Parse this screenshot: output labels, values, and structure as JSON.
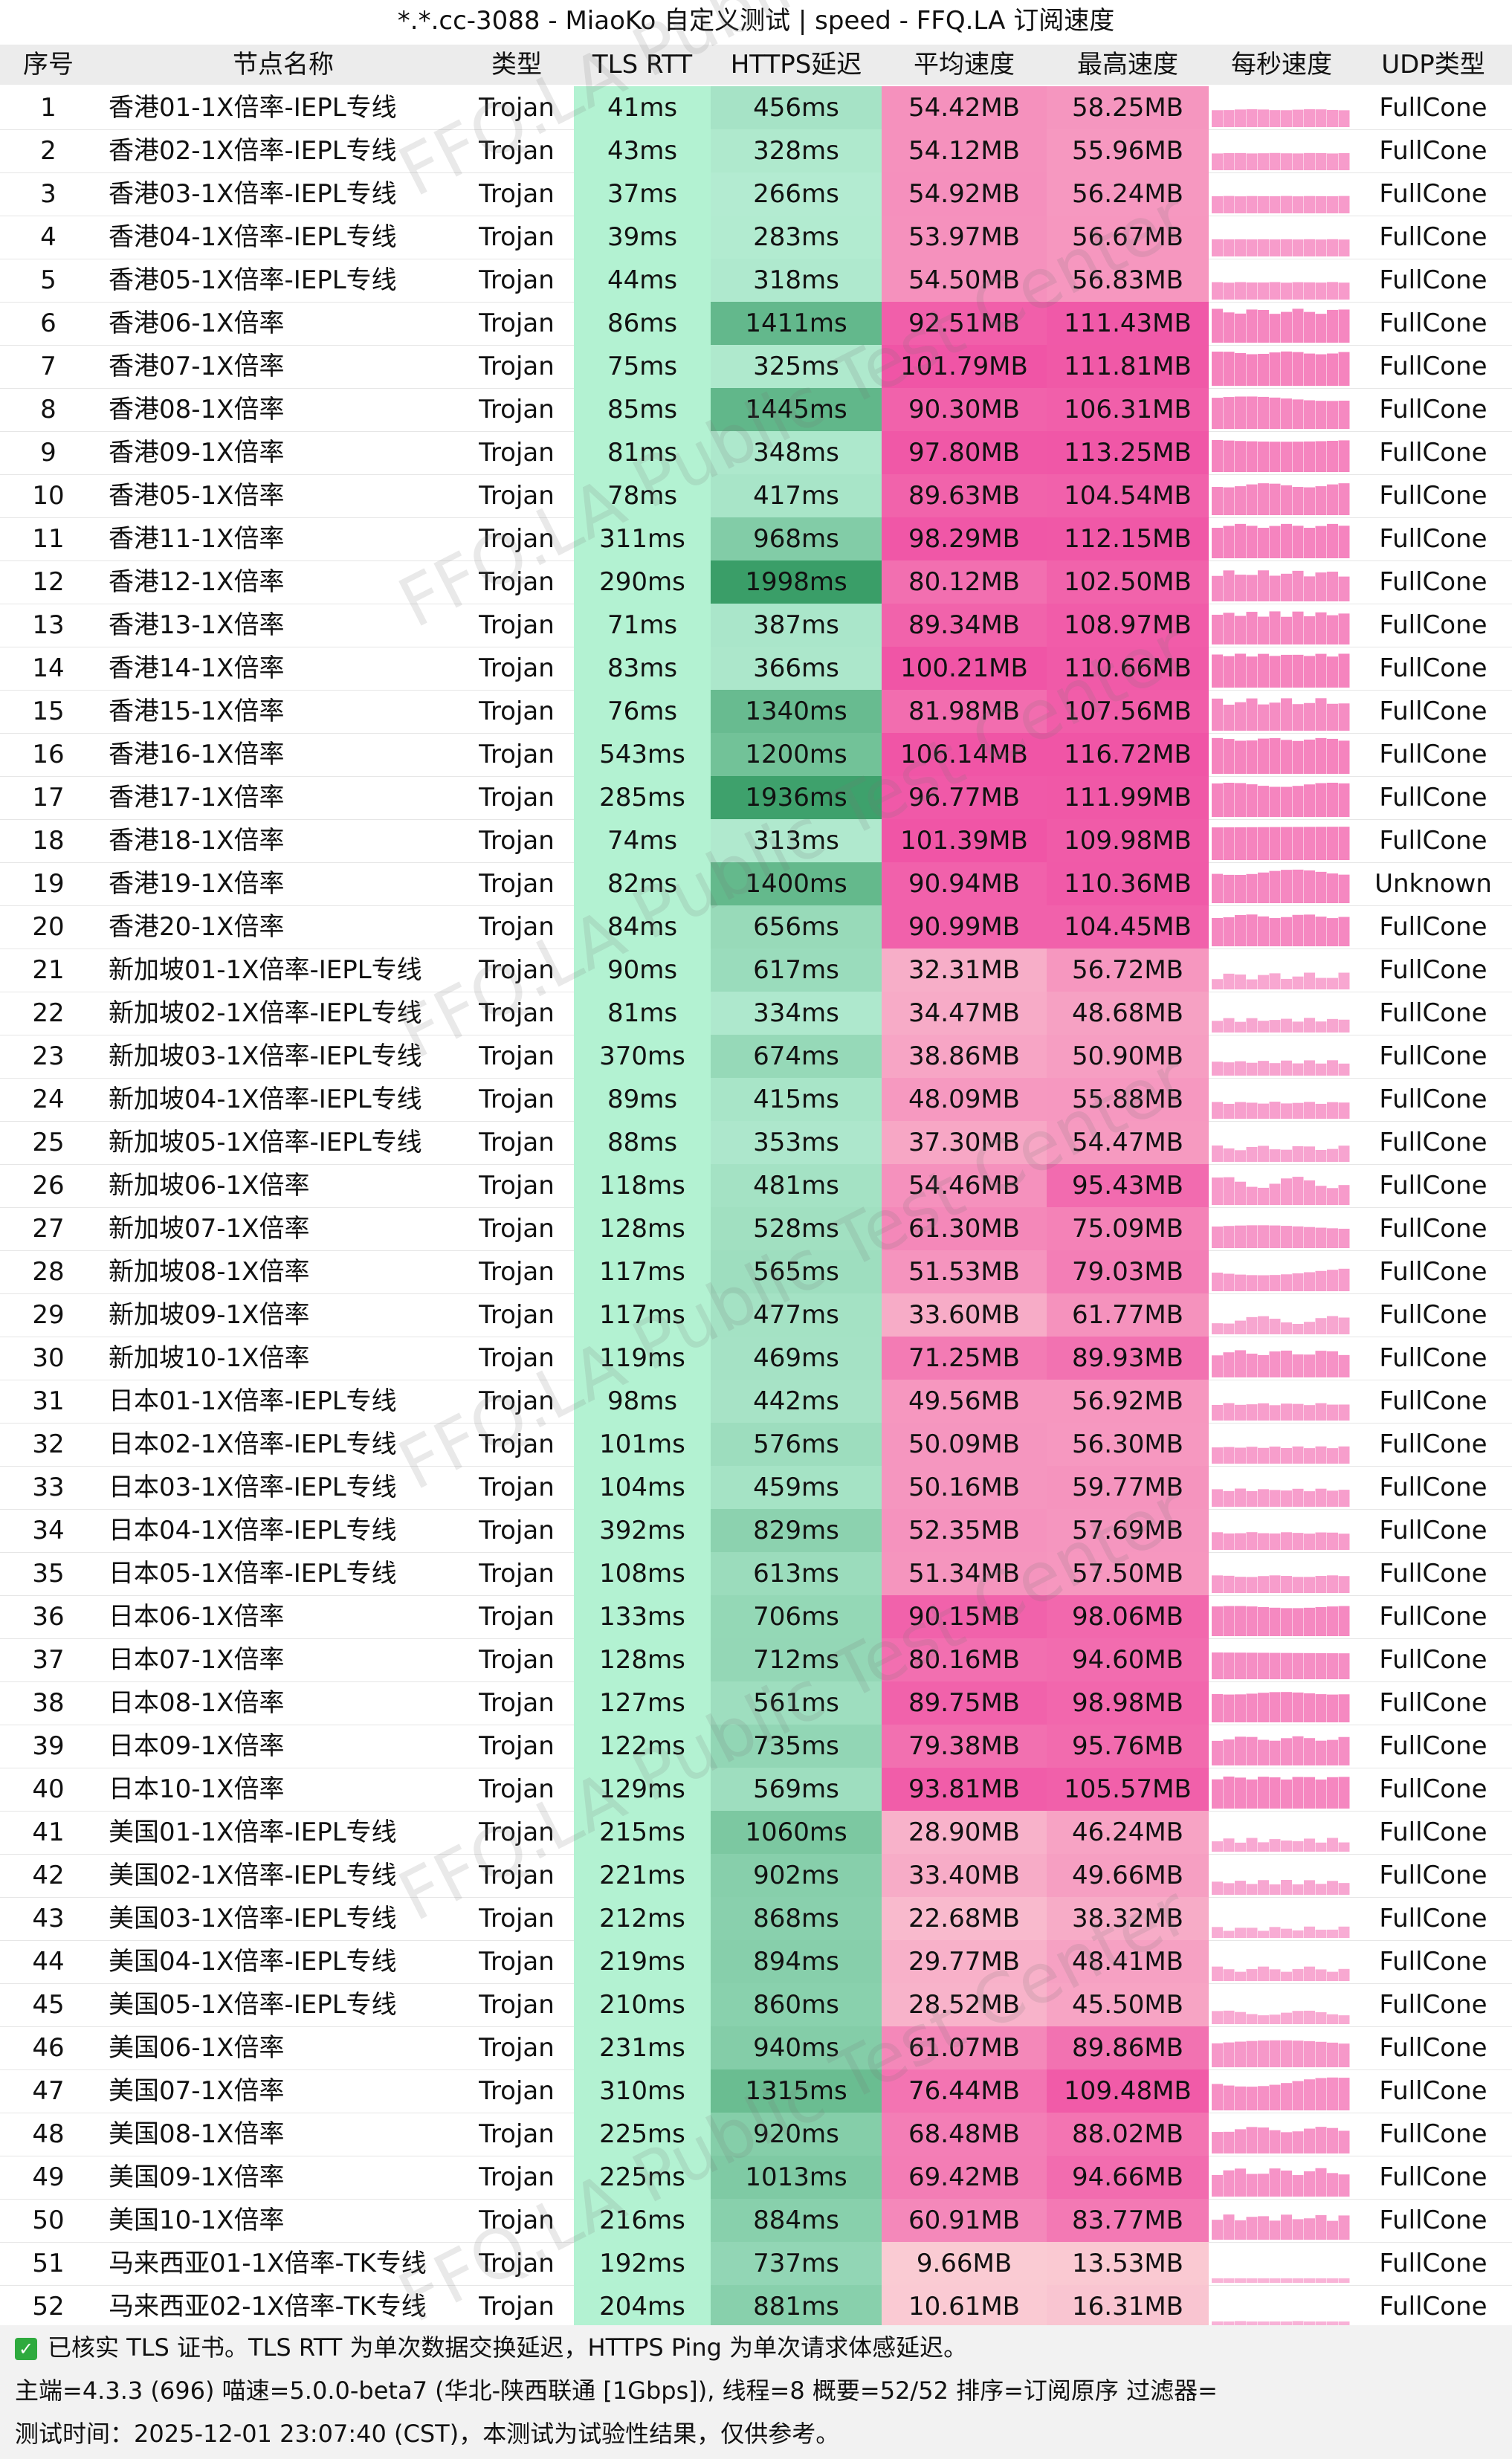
{
  "window": {
    "title": "*.*.cc-3088 - MiaoKo 自定义测试 | speed - FFQ.LA 订阅速度"
  },
  "columns": [
    "序号",
    "节点名称",
    "类型",
    "TLS RTT",
    "HTTPS延迟",
    "平均速度",
    "最高速度",
    "每秒速度",
    "UDP类型"
  ],
  "watermark": "FFQ.LA Public Test Center",
  "colors": {
    "tls_bg": "#b3f2d2",
    "https_light": "#b4ecd2",
    "https_dark": "#3a9e68",
    "speed_light": "#fbd8d8",
    "speed_dark": "#f055a6",
    "spark": "#f47dbb"
  },
  "rows": [
    {
      "idx": "1",
      "name": "香港01-1X倍率-IEPL专线",
      "type": "Trojan",
      "tls": "41ms",
      "https": "456ms",
      "avg": "54.42MB",
      "max": "58.25MB",
      "udp": "FullCone"
    },
    {
      "idx": "2",
      "name": "香港02-1X倍率-IEPL专线",
      "type": "Trojan",
      "tls": "43ms",
      "https": "328ms",
      "avg": "54.12MB",
      "max": "55.96MB",
      "udp": "FullCone"
    },
    {
      "idx": "3",
      "name": "香港03-1X倍率-IEPL专线",
      "type": "Trojan",
      "tls": "37ms",
      "https": "266ms",
      "avg": "54.92MB",
      "max": "56.24MB",
      "udp": "FullCone"
    },
    {
      "idx": "4",
      "name": "香港04-1X倍率-IEPL专线",
      "type": "Trojan",
      "tls": "39ms",
      "https": "283ms",
      "avg": "53.97MB",
      "max": "56.67MB",
      "udp": "FullCone"
    },
    {
      "idx": "5",
      "name": "香港05-1X倍率-IEPL专线",
      "type": "Trojan",
      "tls": "44ms",
      "https": "318ms",
      "avg": "54.50MB",
      "max": "56.83MB",
      "udp": "FullCone"
    },
    {
      "idx": "6",
      "name": "香港06-1X倍率",
      "type": "Trojan",
      "tls": "86ms",
      "https": "1411ms",
      "avg": "92.51MB",
      "max": "111.43MB",
      "udp": "FullCone"
    },
    {
      "idx": "7",
      "name": "香港07-1X倍率",
      "type": "Trojan",
      "tls": "75ms",
      "https": "325ms",
      "avg": "101.79MB",
      "max": "111.81MB",
      "udp": "FullCone"
    },
    {
      "idx": "8",
      "name": "香港08-1X倍率",
      "type": "Trojan",
      "tls": "85ms",
      "https": "1445ms",
      "avg": "90.30MB",
      "max": "106.31MB",
      "udp": "FullCone"
    },
    {
      "idx": "9",
      "name": "香港09-1X倍率",
      "type": "Trojan",
      "tls": "81ms",
      "https": "348ms",
      "avg": "97.80MB",
      "max": "113.25MB",
      "udp": "FullCone"
    },
    {
      "idx": "10",
      "name": "香港05-1X倍率",
      "type": "Trojan",
      "tls": "78ms",
      "https": "417ms",
      "avg": "89.63MB",
      "max": "104.54MB",
      "udp": "FullCone"
    },
    {
      "idx": "11",
      "name": "香港11-1X倍率",
      "type": "Trojan",
      "tls": "311ms",
      "https": "968ms",
      "avg": "98.29MB",
      "max": "112.15MB",
      "udp": "FullCone"
    },
    {
      "idx": "12",
      "name": "香港12-1X倍率",
      "type": "Trojan",
      "tls": "290ms",
      "https": "1998ms",
      "avg": "80.12MB",
      "max": "102.50MB",
      "udp": "FullCone"
    },
    {
      "idx": "13",
      "name": "香港13-1X倍率",
      "type": "Trojan",
      "tls": "71ms",
      "https": "387ms",
      "avg": "89.34MB",
      "max": "108.97MB",
      "udp": "FullCone"
    },
    {
      "idx": "14",
      "name": "香港14-1X倍率",
      "type": "Trojan",
      "tls": "83ms",
      "https": "366ms",
      "avg": "100.21MB",
      "max": "110.66MB",
      "udp": "FullCone"
    },
    {
      "idx": "15",
      "name": "香港15-1X倍率",
      "type": "Trojan",
      "tls": "76ms",
      "https": "1340ms",
      "avg": "81.98MB",
      "max": "107.56MB",
      "udp": "FullCone"
    },
    {
      "idx": "16",
      "name": "香港16-1X倍率",
      "type": "Trojan",
      "tls": "543ms",
      "https": "1200ms",
      "avg": "106.14MB",
      "max": "116.72MB",
      "udp": "FullCone"
    },
    {
      "idx": "17",
      "name": "香港17-1X倍率",
      "type": "Trojan",
      "tls": "285ms",
      "https": "1936ms",
      "avg": "96.77MB",
      "max": "111.99MB",
      "udp": "FullCone"
    },
    {
      "idx": "18",
      "name": "香港18-1X倍率",
      "type": "Trojan",
      "tls": "74ms",
      "https": "313ms",
      "avg": "101.39MB",
      "max": "109.98MB",
      "udp": "FullCone"
    },
    {
      "idx": "19",
      "name": "香港19-1X倍率",
      "type": "Trojan",
      "tls": "82ms",
      "https": "1400ms",
      "avg": "90.94MB",
      "max": "110.36MB",
      "udp": "Unknown"
    },
    {
      "idx": "20",
      "name": "香港20-1X倍率",
      "type": "Trojan",
      "tls": "84ms",
      "https": "656ms",
      "avg": "90.99MB",
      "max": "104.45MB",
      "udp": "FullCone"
    },
    {
      "idx": "21",
      "name": "新加坡01-1X倍率-IEPL专线",
      "type": "Trojan",
      "tls": "90ms",
      "https": "617ms",
      "avg": "32.31MB",
      "max": "56.72MB",
      "udp": "FullCone"
    },
    {
      "idx": "22",
      "name": "新加坡02-1X倍率-IEPL专线",
      "type": "Trojan",
      "tls": "81ms",
      "https": "334ms",
      "avg": "34.47MB",
      "max": "48.68MB",
      "udp": "FullCone"
    },
    {
      "idx": "23",
      "name": "新加坡03-1X倍率-IEPL专线",
      "type": "Trojan",
      "tls": "370ms",
      "https": "674ms",
      "avg": "38.86MB",
      "max": "50.90MB",
      "udp": "FullCone"
    },
    {
      "idx": "24",
      "name": "新加坡04-1X倍率-IEPL专线",
      "type": "Trojan",
      "tls": "89ms",
      "https": "415ms",
      "avg": "48.09MB",
      "max": "55.88MB",
      "udp": "FullCone"
    },
    {
      "idx": "25",
      "name": "新加坡05-1X倍率-IEPL专线",
      "type": "Trojan",
      "tls": "88ms",
      "https": "353ms",
      "avg": "37.30MB",
      "max": "54.47MB",
      "udp": "FullCone"
    },
    {
      "idx": "26",
      "name": "新加坡06-1X倍率",
      "type": "Trojan",
      "tls": "118ms",
      "https": "481ms",
      "avg": "54.46MB",
      "max": "95.43MB",
      "udp": "FullCone"
    },
    {
      "idx": "27",
      "name": "新加坡07-1X倍率",
      "type": "Trojan",
      "tls": "128ms",
      "https": "528ms",
      "avg": "61.30MB",
      "max": "75.09MB",
      "udp": "FullCone"
    },
    {
      "idx": "28",
      "name": "新加坡08-1X倍率",
      "type": "Trojan",
      "tls": "117ms",
      "https": "565ms",
      "avg": "51.53MB",
      "max": "79.03MB",
      "udp": "FullCone"
    },
    {
      "idx": "29",
      "name": "新加坡09-1X倍率",
      "type": "Trojan",
      "tls": "117ms",
      "https": "477ms",
      "avg": "33.60MB",
      "max": "61.77MB",
      "udp": "FullCone"
    },
    {
      "idx": "30",
      "name": "新加坡10-1X倍率",
      "type": "Trojan",
      "tls": "119ms",
      "https": "469ms",
      "avg": "71.25MB",
      "max": "89.93MB",
      "udp": "FullCone"
    },
    {
      "idx": "31",
      "name": "日本01-1X倍率-IEPL专线",
      "type": "Trojan",
      "tls": "98ms",
      "https": "442ms",
      "avg": "49.56MB",
      "max": "56.92MB",
      "udp": "FullCone"
    },
    {
      "idx": "32",
      "name": "日本02-1X倍率-IEPL专线",
      "type": "Trojan",
      "tls": "101ms",
      "https": "576ms",
      "avg": "50.09MB",
      "max": "56.30MB",
      "udp": "FullCone"
    },
    {
      "idx": "33",
      "name": "日本03-1X倍率-IEPL专线",
      "type": "Trojan",
      "tls": "104ms",
      "https": "459ms",
      "avg": "50.16MB",
      "max": "59.77MB",
      "udp": "FullCone"
    },
    {
      "idx": "34",
      "name": "日本04-1X倍率-IEPL专线",
      "type": "Trojan",
      "tls": "392ms",
      "https": "829ms",
      "avg": "52.35MB",
      "max": "57.69MB",
      "udp": "FullCone"
    },
    {
      "idx": "35",
      "name": "日本05-1X倍率-IEPL专线",
      "type": "Trojan",
      "tls": "108ms",
      "https": "613ms",
      "avg": "51.34MB",
      "max": "57.50MB",
      "udp": "FullCone"
    },
    {
      "idx": "36",
      "name": "日本06-1X倍率",
      "type": "Trojan",
      "tls": "133ms",
      "https": "706ms",
      "avg": "90.15MB",
      "max": "98.06MB",
      "udp": "FullCone"
    },
    {
      "idx": "37",
      "name": "日本07-1X倍率",
      "type": "Trojan",
      "tls": "128ms",
      "https": "712ms",
      "avg": "80.16MB",
      "max": "94.60MB",
      "udp": "FullCone"
    },
    {
      "idx": "38",
      "name": "日本08-1X倍率",
      "type": "Trojan",
      "tls": "127ms",
      "https": "561ms",
      "avg": "89.75MB",
      "max": "98.98MB",
      "udp": "FullCone"
    },
    {
      "idx": "39",
      "name": "日本09-1X倍率",
      "type": "Trojan",
      "tls": "122ms",
      "https": "735ms",
      "avg": "79.38MB",
      "max": "95.76MB",
      "udp": "FullCone"
    },
    {
      "idx": "40",
      "name": "日本10-1X倍率",
      "type": "Trojan",
      "tls": "129ms",
      "https": "569ms",
      "avg": "93.81MB",
      "max": "105.57MB",
      "udp": "FullCone"
    },
    {
      "idx": "41",
      "name": "美国01-1X倍率-IEPL专线",
      "type": "Trojan",
      "tls": "215ms",
      "https": "1060ms",
      "avg": "28.90MB",
      "max": "46.24MB",
      "udp": "FullCone"
    },
    {
      "idx": "42",
      "name": "美国02-1X倍率-IEPL专线",
      "type": "Trojan",
      "tls": "221ms",
      "https": "902ms",
      "avg": "33.40MB",
      "max": "49.66MB",
      "udp": "FullCone"
    },
    {
      "idx": "43",
      "name": "美国03-1X倍率-IEPL专线",
      "type": "Trojan",
      "tls": "212ms",
      "https": "868ms",
      "avg": "22.68MB",
      "max": "38.32MB",
      "udp": "FullCone"
    },
    {
      "idx": "44",
      "name": "美国04-1X倍率-IEPL专线",
      "type": "Trojan",
      "tls": "219ms",
      "https": "894ms",
      "avg": "29.77MB",
      "max": "48.41MB",
      "udp": "FullCone"
    },
    {
      "idx": "45",
      "name": "美国05-1X倍率-IEPL专线",
      "type": "Trojan",
      "tls": "210ms",
      "https": "860ms",
      "avg": "28.52MB",
      "max": "45.50MB",
      "udp": "FullCone"
    },
    {
      "idx": "46",
      "name": "美国06-1X倍率",
      "type": "Trojan",
      "tls": "231ms",
      "https": "940ms",
      "avg": "61.07MB",
      "max": "89.86MB",
      "udp": "FullCone"
    },
    {
      "idx": "47",
      "name": "美国07-1X倍率",
      "type": "Trojan",
      "tls": "310ms",
      "https": "1315ms",
      "avg": "76.44MB",
      "max": "109.48MB",
      "udp": "FullCone"
    },
    {
      "idx": "48",
      "name": "美国08-1X倍率",
      "type": "Trojan",
      "tls": "225ms",
      "https": "920ms",
      "avg": "68.48MB",
      "max": "88.02MB",
      "udp": "FullCone"
    },
    {
      "idx": "49",
      "name": "美国09-1X倍率",
      "type": "Trojan",
      "tls": "225ms",
      "https": "1013ms",
      "avg": "69.42MB",
      "max": "94.66MB",
      "udp": "FullCone"
    },
    {
      "idx": "50",
      "name": "美国10-1X倍率",
      "type": "Trojan",
      "tls": "216ms",
      "https": "884ms",
      "avg": "60.91MB",
      "max": "83.77MB",
      "udp": "FullCone"
    },
    {
      "idx": "51",
      "name": "马来西亚01-1X倍率-TK专线",
      "type": "Trojan",
      "tls": "192ms",
      "https": "737ms",
      "avg": "9.66MB",
      "max": "13.53MB",
      "udp": "FullCone"
    },
    {
      "idx": "52",
      "name": "马来西亚02-1X倍率-TK专线",
      "type": "Trojan",
      "tls": "204ms",
      "https": "881ms",
      "avg": "10.61MB",
      "max": "16.31MB",
      "udp": "FullCone"
    }
  ],
  "footer": {
    "line1": "已核实 TLS 证书。TLS RTT 为单次数据交换延迟，HTTPS Ping 为单次请求体感延迟。",
    "line2": "主端=4.3.3 (696) 喵速=5.0.0-beta7 (华北-陕西联通 [1Gbps]), 线程=8 概要=52/52 排序=订阅原序 过滤器=",
    "line3": "测试时间：2025-12-01 23:07:40 (CST)，本测试为试验性结果，仅供参考。"
  }
}
